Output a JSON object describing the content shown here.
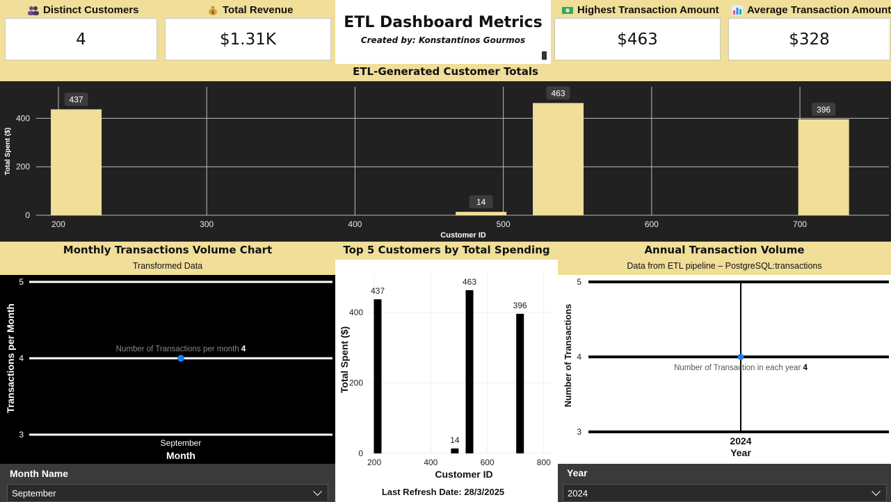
{
  "kpis": {
    "distinct_customers": {
      "label": "Distinct Customers",
      "value": "4",
      "icon": "people-icon"
    },
    "total_revenue": {
      "label": "Total Revenue",
      "value": "$1.31K",
      "icon": "money-bag-icon"
    },
    "highest_transaction": {
      "label": "Highest Transaction Amount",
      "value": "$463",
      "icon": "banknote-icon"
    },
    "average_transaction": {
      "label": "Average Transaction Amount",
      "value": "$328",
      "icon": "bar-chart-icon"
    }
  },
  "header": {
    "title": "ETL Dashboard Metrics",
    "subtitle": "Created by: Konstantinos Gourmos"
  },
  "customer_totals": {
    "title": "ETL-Generated Customer Totals"
  },
  "monthly": {
    "title": "Monthly Transactions Volume Chart",
    "subtitle": "Transformed Data",
    "tooltip_label": "Number of Transactions per month",
    "tooltip_value": "4"
  },
  "top5": {
    "title": "Top 5 Customers by Total Spending",
    "refresh": "Last Refresh Date: 28/3/2025"
  },
  "annual": {
    "title": "Annual Transaction Volume",
    "subtitle": "Data from ETL pipeline – PostgreSQL:transactions",
    "tooltip_label": "Number of Transaction in each year",
    "tooltip_value": "4"
  },
  "slicers": {
    "month": {
      "label": "Month Name",
      "value": "September"
    },
    "year": {
      "label": "Year",
      "value": "2024"
    }
  },
  "colors": {
    "accent": "#f0de99",
    "dark": "#222222",
    "point": "#1a7ff0"
  },
  "chart_data": [
    {
      "id": "customer_totals",
      "type": "bar",
      "x": [
        212,
        485,
        537,
        716
      ],
      "values": [
        437,
        14,
        463,
        396
      ],
      "xlabel": "Customer ID",
      "ylabel": "Total Spent ($)",
      "xticks": [
        200,
        300,
        400,
        500,
        600,
        700
      ],
      "yticks": [
        0,
        200,
        400
      ],
      "xlim": [
        185,
        760
      ],
      "ylim": [
        0,
        530
      ],
      "grid": true
    },
    {
      "id": "monthly",
      "type": "line",
      "categories": [
        "September"
      ],
      "values": [
        4
      ],
      "xlabel": "Month",
      "ylabel": "Transactions per Month",
      "yticks": [
        3,
        4,
        5
      ],
      "ylim": [
        3,
        5
      ]
    },
    {
      "id": "top5",
      "type": "bar",
      "x": [
        212,
        485,
        537,
        716
      ],
      "values": [
        437,
        14,
        463,
        396
      ],
      "xlabel": "Customer ID",
      "ylabel": "Total Spent ($)",
      "xticks": [
        200,
        400,
        600,
        800
      ],
      "yticks": [
        0,
        200,
        400
      ],
      "xlim": [
        180,
        830
      ],
      "ylim": [
        0,
        510
      ],
      "grid": true
    },
    {
      "id": "annual",
      "type": "line",
      "categories": [
        "2024"
      ],
      "values": [
        4
      ],
      "xlabel": "Year",
      "ylabel": "Number of Transactions",
      "yticks": [
        3,
        4,
        5
      ],
      "ylim": [
        3,
        5
      ]
    }
  ]
}
